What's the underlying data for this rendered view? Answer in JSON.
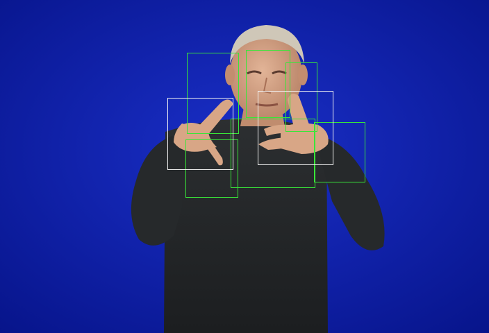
{
  "image": {
    "description_kind": "video frame of a sign language signer",
    "colors": {
      "background": "#0a1a9c",
      "background_center": "#1a2fc8",
      "shirt": "#25282a",
      "skin": "#d8a686",
      "hair": "#cfc7b8",
      "detection_box": "#39e639",
      "reference_box": "#f2f2f2"
    }
  },
  "boxes": [
    {
      "kind": "detection"
    },
    {
      "kind": "detection"
    },
    {
      "kind": "detection"
    },
    {
      "kind": "detection"
    },
    {
      "kind": "detection"
    },
    {
      "kind": "detection"
    },
    {
      "kind": "reference"
    },
    {
      "kind": "reference"
    }
  ]
}
